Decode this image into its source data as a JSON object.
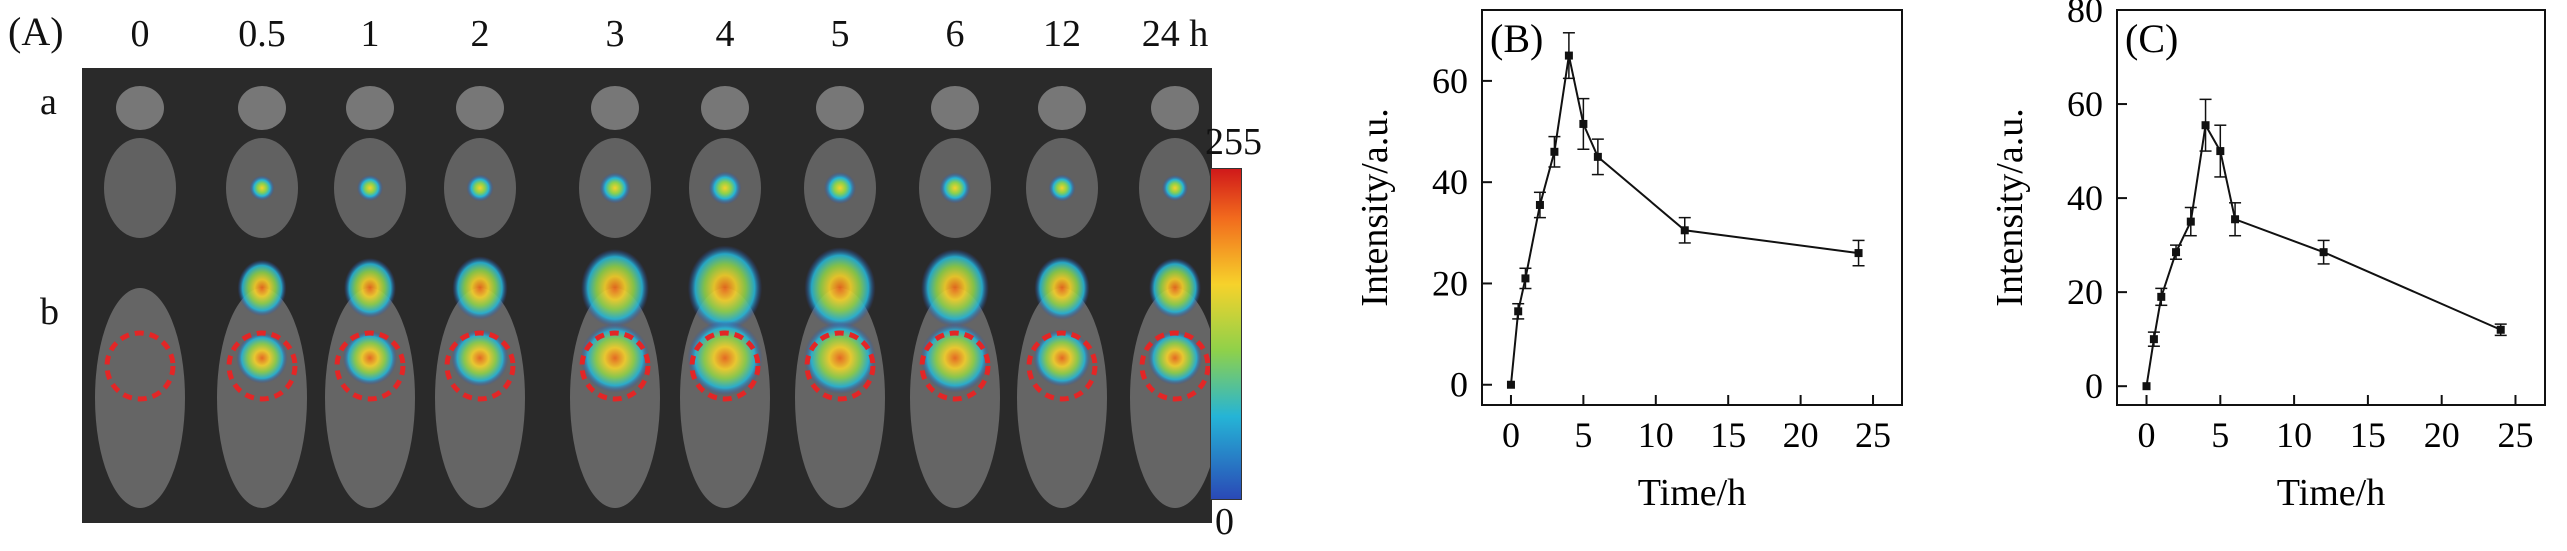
{
  "panel_a": {
    "label": "(A)",
    "time_points": [
      "0",
      "0.5",
      "1",
      "2",
      "3",
      "4",
      "5",
      "6",
      "12",
      "24 h"
    ],
    "row_labels": [
      "a",
      "b"
    ],
    "colorbar": {
      "max_label": "255",
      "min_label": "0",
      "colors": [
        "#d0191a",
        "#f6d22b",
        "#8fd14a",
        "#25b4d6",
        "#2a49b6"
      ]
    },
    "marker_color": "#e32626",
    "intensity_levels": [
      0,
      0.45,
      0.5,
      0.55,
      0.75,
      0.85,
      0.8,
      0.75,
      0.55,
      0.5
    ]
  },
  "chart_data": [
    {
      "type": "line",
      "panel_label": "(B)",
      "xlabel": "Time/h",
      "ylabel": "Intensity/a.u.",
      "xlim": [
        -2,
        27
      ],
      "ylim": [
        -4,
        74
      ],
      "xticks": [
        0,
        5,
        10,
        15,
        20,
        25
      ],
      "yticks": [
        0,
        20,
        40,
        60
      ],
      "x": [
        0,
        0.5,
        1,
        2,
        3,
        4,
        5,
        6,
        12,
        24
      ],
      "y": [
        0,
        14.5,
        21,
        35.5,
        46,
        65,
        51.5,
        45,
        30.5,
        26
      ],
      "err": [
        0,
        1.5,
        2,
        2.5,
        3,
        4.5,
        5,
        3.5,
        2.5,
        2.5
      ]
    },
    {
      "type": "line",
      "panel_label": "(C)",
      "xlabel": "Time/h",
      "ylabel": "Intensity/a.u.",
      "xlim": [
        -2,
        27
      ],
      "ylim": [
        -4,
        80
      ],
      "xticks": [
        0,
        5,
        10,
        15,
        20,
        25
      ],
      "yticks": [
        0,
        20,
        40,
        60,
        80
      ],
      "x": [
        0,
        0.5,
        1,
        2,
        3,
        4,
        5,
        6,
        12,
        24
      ],
      "y": [
        0,
        10,
        19,
        28.5,
        35,
        55.5,
        50,
        35.5,
        28.5,
        12
      ],
      "err": [
        0,
        1.5,
        1.8,
        1.5,
        3,
        5.5,
        5.5,
        3.5,
        2.5,
        1.2
      ]
    }
  ]
}
